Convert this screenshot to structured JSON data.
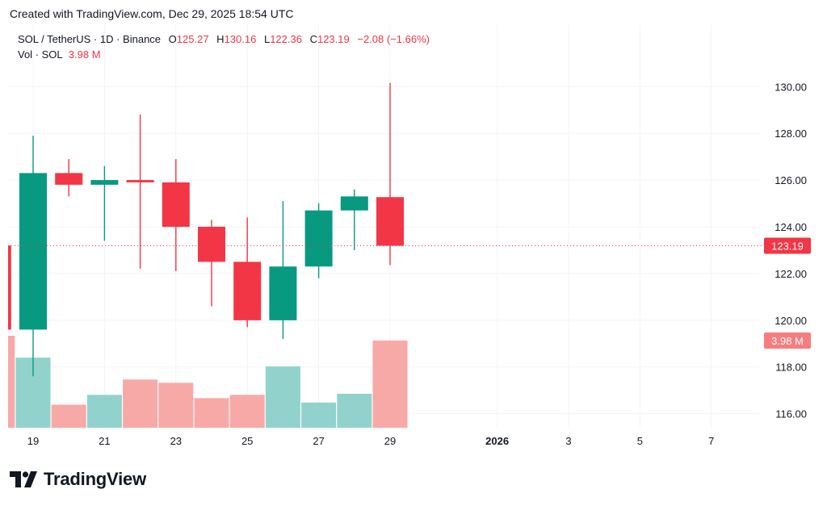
{
  "caption": "Created with TradingView.com, Dec 29, 2025 18:54 UTC",
  "legend": {
    "symbol": "SOL / TetherUS · 1D · Binance",
    "o_label": "O",
    "o_value": "125.27",
    "h_label": "H",
    "h_value": "130.16",
    "l_label": "L",
    "l_value": "122.36",
    "c_label": "C",
    "c_value": "123.19",
    "change": "−2.08 (−1.66%)",
    "vol_label": "Vol · SOL",
    "vol_value": "3.98 M"
  },
  "brand": {
    "name": "TradingView",
    "logo_icon": "tradingview-logo-icon"
  },
  "colors": {
    "up": "#089981",
    "down": "#f23645",
    "vol_up": "#92d2cc",
    "vol_down": "#f7a9a7",
    "grid": "#f0f3fa"
  },
  "chart_data": {
    "type": "candlestick",
    "price_axis": {
      "ticks": [
        116,
        118,
        120,
        122,
        124,
        126,
        128,
        130
      ],
      "tick_labels": [
        "116.00",
        "118.00",
        "120.00",
        "122.00",
        "124.00",
        "126.00",
        "128.00",
        "130.00"
      ],
      "range": [
        115.4,
        131.6
      ],
      "position": "right"
    },
    "time_axis": {
      "tick_labels": [
        "19",
        "21",
        "23",
        "25",
        "27",
        "29",
        "2026",
        "3",
        "5",
        "7"
      ],
      "tick_days": [
        "2025-12-19",
        "2025-12-21",
        "2025-12-23",
        "2025-12-25",
        "2025-12-27",
        "2025-12-29",
        "2026-01-01",
        "2026-01-03",
        "2026-01-05",
        "2026-01-07"
      ]
    },
    "last_price_label": "123.19",
    "last_volume_label": "3.98 M",
    "candles": [
      {
        "date": "2025-12-18",
        "open": 123.2,
        "high": 123.2,
        "low": 119.6,
        "close": 119.6,
        "volume": 4.2
      },
      {
        "date": "2025-12-19",
        "open": 119.6,
        "high": 127.9,
        "low": 117.6,
        "close": 126.3,
        "volume": 3.2
      },
      {
        "date": "2025-12-20",
        "open": 126.3,
        "high": 126.9,
        "low": 125.3,
        "close": 125.8,
        "volume": 1.05
      },
      {
        "date": "2025-12-21",
        "open": 125.8,
        "high": 126.6,
        "low": 123.4,
        "close": 126.0,
        "volume": 1.5
      },
      {
        "date": "2025-12-22",
        "open": 126.0,
        "high": 128.8,
        "low": 122.2,
        "close": 125.9,
        "volume": 2.2
      },
      {
        "date": "2025-12-23",
        "open": 125.9,
        "high": 126.9,
        "low": 122.1,
        "close": 124.0,
        "volume": 2.05
      },
      {
        "date": "2025-12-24",
        "open": 124.0,
        "high": 124.3,
        "low": 120.6,
        "close": 122.5,
        "volume": 1.35
      },
      {
        "date": "2025-12-25",
        "open": 122.5,
        "high": 124.4,
        "low": 119.7,
        "close": 120.0,
        "volume": 1.5
      },
      {
        "date": "2025-12-26",
        "open": 120.0,
        "high": 125.1,
        "low": 119.2,
        "close": 122.3,
        "volume": 2.8
      },
      {
        "date": "2025-12-27",
        "open": 122.3,
        "high": 125.0,
        "low": 121.8,
        "close": 124.7,
        "volume": 1.15
      },
      {
        "date": "2025-12-28",
        "open": 124.7,
        "high": 125.6,
        "low": 123.0,
        "close": 125.3,
        "volume": 1.55
      },
      {
        "date": "2025-12-29",
        "open": 125.27,
        "high": 130.16,
        "low": 122.36,
        "close": 123.19,
        "volume": 3.98
      }
    ]
  }
}
